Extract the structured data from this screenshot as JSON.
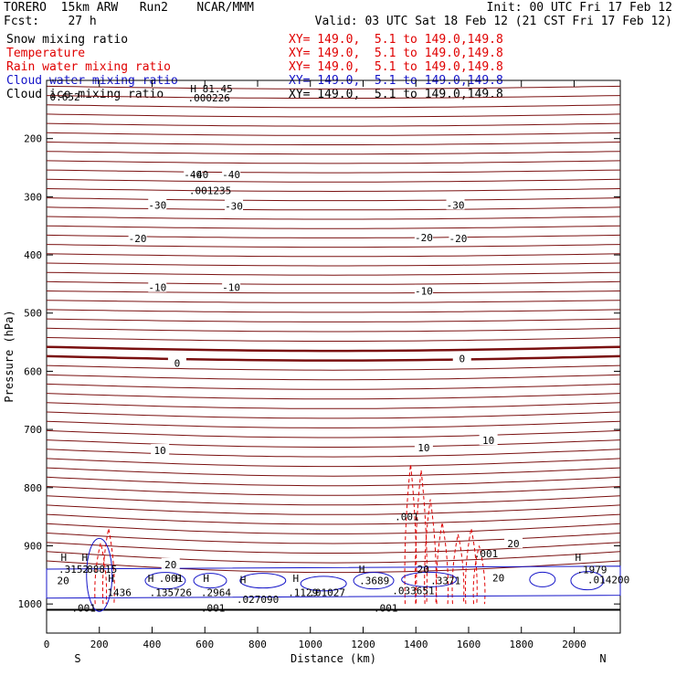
{
  "header": {
    "model": "TORERO  15km ARW   Run2    NCAR/MMM",
    "init": "Init: 00 UTC Fri 17 Feb 12",
    "forecast": "Fcst:    27 h",
    "valid": "Valid: 03 UTC Sat 18 Feb 12 (21 CST Fri 17 Feb 12)"
  },
  "fields": [
    {
      "name": "Snow mixing ratio",
      "info": "XY= 149.0,  5.1 to 149.0,149.8",
      "color": "#000000",
      "info_color": "#e00000"
    },
    {
      "name": "Temperature",
      "info": "XY= 149.0,  5.1 to 149.0,149.8",
      "color": "#e00000",
      "info_color": "#e00000"
    },
    {
      "name": "Rain water mixing ratio",
      "info": "XY= 149.0,  5.1 to 149.0,149.8",
      "color": "#e00000",
      "info_color": "#e00000"
    },
    {
      "name": "Cloud water mixing ratio",
      "info": "XY= 149.0,  5.1 to 149.0,149.8",
      "color": "#1414c8",
      "info_color": "#1414c8"
    },
    {
      "name": "Cloud ice mixing ratio",
      "info": "XY= 149.0,  5.1 to 149.0,149.8",
      "color": "#000000",
      "info_color": "#000000"
    }
  ],
  "chart_data": {
    "type": "contour",
    "ylabel": "Pressure (hPa)",
    "xlabel": "Distance (km)",
    "x_ticks": [
      0,
      200,
      400,
      600,
      800,
      1000,
      1200,
      1400,
      1600,
      1800,
      2000
    ],
    "y_ticks": [
      200,
      300,
      400,
      500,
      600,
      700,
      800,
      900,
      1000
    ],
    "xlim": [
      0,
      2175
    ],
    "ylim": [
      100,
      1050
    ],
    "left_end": "S",
    "right_end": "N",
    "surface_pressure_hPa": 1010,
    "temperature_label_values": [
      "-40",
      "-40",
      "-30",
      "-30",
      "-30",
      "-20",
      "-20",
      "-20",
      "-10",
      "-10",
      "-10",
      "0",
      "0",
      "10",
      "10",
      "10",
      "20",
      "20"
    ],
    "temperature_labels": [
      {
        "text": "-40",
        "x": 555,
        "p": 262
      },
      {
        "text": "-40",
        "x": 700,
        "p": 262
      },
      {
        "text": "-30",
        "x": 420,
        "p": 314
      },
      {
        "text": "-30",
        "x": 710,
        "p": 316
      },
      {
        "text": "-30",
        "x": 1550,
        "p": 314
      },
      {
        "text": "-20",
        "x": 345,
        "p": 372
      },
      {
        "text": "-20",
        "x": 1430,
        "p": 370
      },
      {
        "text": "-20",
        "x": 1560,
        "p": 372
      },
      {
        "text": "-10",
        "x": 420,
        "p": 456
      },
      {
        "text": "-10",
        "x": 700,
        "p": 456
      },
      {
        "text": "-10",
        "x": 1430,
        "p": 462
      },
      {
        "text": "0",
        "x": 495,
        "p": 586
      },
      {
        "text": "0",
        "x": 1575,
        "p": 578
      },
      {
        "text": "10",
        "x": 430,
        "p": 736
      },
      {
        "text": "10",
        "x": 1430,
        "p": 731
      },
      {
        "text": "10",
        "x": 1675,
        "p": 719
      },
      {
        "text": "20",
        "x": 470,
        "p": 932
      },
      {
        "text": "20",
        "x": 1770,
        "p": 896
      }
    ],
    "max_markers": [
      {
        "text": "H",
        "x": 65,
        "p": 920,
        "color": "#1414c8"
      },
      {
        "text": "H",
        "x": 145,
        "p": 920,
        "color": "#e00000"
      },
      {
        "text": "H",
        "x": 245,
        "p": 956,
        "color": "#1414c8"
      },
      {
        "text": "H",
        "x": 395,
        "p": 956,
        "color": "#e00000"
      },
      {
        "text": "H",
        "x": 500,
        "p": 956,
        "color": "#e00000"
      },
      {
        "text": "H",
        "x": 605,
        "p": 956,
        "color": "#1414c8"
      },
      {
        "text": "H",
        "x": 745,
        "p": 958,
        "color": "#e00000"
      },
      {
        "text": "H",
        "x": 945,
        "p": 956,
        "color": "#1414c8"
      },
      {
        "text": "H",
        "x": 1195,
        "p": 940,
        "color": "#1414c8"
      },
      {
        "text": "H",
        "x": 2015,
        "p": 920,
        "color": "#1414c8"
      }
    ],
    "value_labels": [
      {
        "text": "0.652",
        "x": 12,
        "p": 128,
        "color": "#000000"
      },
      {
        "text": "H 81.45",
        "x": 545,
        "p": 114,
        "color": "#000000"
      },
      {
        "text": ".000226",
        "x": 535,
        "p": 130,
        "color": "#000000"
      },
      {
        "text": ".001235",
        "x": 540,
        "p": 289,
        "color": "#000000"
      },
      {
        "text": "-40",
        "x": 545,
        "p": 262,
        "color": "#000000"
      },
      {
        "text": ".001",
        "x": 1320,
        "p": 850,
        "color": "#e00000"
      },
      {
        "text": ".001",
        "x": 1620,
        "p": 913,
        "color": "#e00000"
      },
      {
        "text": ".001",
        "x": 425,
        "p": 956,
        "color": "#1414c8"
      },
      {
        "text": ".001",
        "x": 95,
        "p": 1007,
        "color": "#e00000"
      },
      {
        "text": ".001",
        "x": 585,
        "p": 1007,
        "color": "#e00000"
      },
      {
        "text": ".001",
        "x": 1240,
        "p": 1007,
        "color": "#e00000"
      },
      {
        "text": ".3152",
        "x": 45,
        "p": 940,
        "color": "#1414c8"
      },
      {
        "text": ".88815",
        "x": 130,
        "p": 940,
        "color": "#e00000"
      },
      {
        "text": "1436",
        "x": 230,
        "p": 980,
        "color": "#1414c8"
      },
      {
        "text": ".135726",
        "x": 390,
        "p": 980,
        "color": "#e00000"
      },
      {
        "text": ".2964",
        "x": 585,
        "p": 980,
        "color": "#1414c8"
      },
      {
        "text": ".027090",
        "x": 720,
        "p": 992,
        "color": "#e00000"
      },
      {
        "text": ".1129",
        "x": 915,
        "p": 980,
        "color": "#1414c8"
      },
      {
        "text": ".01027",
        "x": 995,
        "p": 980,
        "color": "#e00000"
      },
      {
        "text": ".3689",
        "x": 1185,
        "p": 960,
        "color": "#1414c8"
      },
      {
        "text": ".033651",
        "x": 1310,
        "p": 977,
        "color": "#e00000"
      },
      {
        "text": ".3371",
        "x": 1455,
        "p": 960,
        "color": "#1414c8"
      },
      {
        "text": "20",
        "x": 40,
        "p": 960,
        "color": "#e00000"
      },
      {
        "text": "20",
        "x": 1690,
        "p": 955,
        "color": "#e00000"
      },
      {
        "text": "20",
        "x": 1405,
        "p": 940,
        "color": "#e00000"
      },
      {
        "text": ".1979",
        "x": 2010,
        "p": 941,
        "color": "#1414c8"
      },
      {
        "text": ".014200",
        "x": 2050,
        "p": 958,
        "color": "#e00000"
      }
    ]
  }
}
